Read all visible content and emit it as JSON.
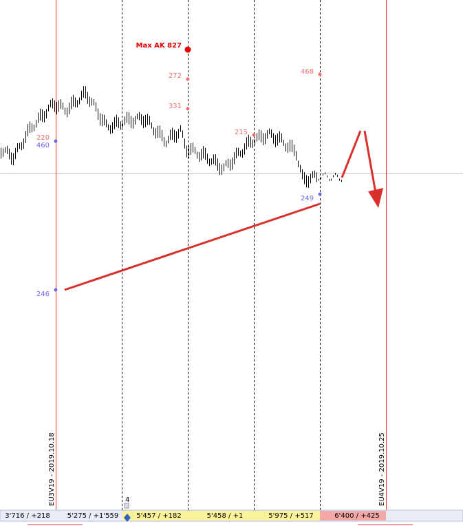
{
  "annotations": {
    "max_label": "Max AK 827",
    "p272": "272",
    "p331": "331",
    "p468": "468",
    "p215": "215",
    "p220": "220",
    "p460": "460",
    "p249": "249",
    "p246": "246",
    "marker_count": "4"
  },
  "vertical_labels": [
    "EU3V19 - 2019.10.18",
    "EU4V19 - 2019.10.25"
  ],
  "bottom_bar": [
    "3'716 / +218",
    "5'275 / +1'559",
    "5'457 / +182",
    "5'458 / +1",
    "5'975 / +517",
    "6'400 / +425"
  ]
}
